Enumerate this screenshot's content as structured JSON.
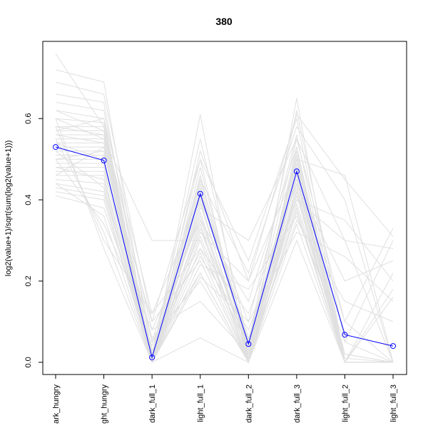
{
  "chart_data": {
    "type": "line",
    "title": "380",
    "xlabel": "",
    "ylabel": "log2(value+1)/sqrt(sum(log2(value+1)))",
    "categories": [
      "dark_hungry",
      "light_hungry",
      "dark_full_1",
      "light_full_1",
      "dark_full_2",
      "dark_full_3",
      "light_full_2",
      "light_full_3"
    ],
    "tick_labels": [
      "ark_hungry",
      "ght_hungry",
      "dark_full_1",
      "light_full_1",
      "dark_full_2",
      "dark_full_3",
      "light_full_2",
      "light_full_3"
    ],
    "y_ticks": [
      "0.0",
      "0.2",
      "0.4",
      "0.6"
    ],
    "ylim": [
      -0.03,
      0.79
    ],
    "grid": false,
    "series": [
      {
        "highlight": true,
        "color": "#0000ff",
        "marker": "open-circle",
        "values": [
          0.53,
          0.497,
          0.012,
          0.415,
          0.045,
          0.47,
          0.068,
          0.04
        ]
      }
    ],
    "background_series": {
      "color": "#e0e0e0",
      "values": [
        [
          0.76,
          0.58,
          0.0,
          0.61,
          0.0,
          0.65,
          0.0,
          0.0
        ],
        [
          0.72,
          0.69,
          0.02,
          0.55,
          0.05,
          0.62,
          0.05,
          0.0
        ],
        [
          0.69,
          0.66,
          0.1,
          0.5,
          0.25,
          0.6,
          0.0,
          0.0
        ],
        [
          0.66,
          0.64,
          0.0,
          0.52,
          0.2,
          0.61,
          0.45,
          0.31
        ],
        [
          0.64,
          0.62,
          0.05,
          0.45,
          0.22,
          0.58,
          0.4,
          0.0
        ],
        [
          0.62,
          0.6,
          0.12,
          0.4,
          0.1,
          0.56,
          0.0,
          0.16
        ],
        [
          0.6,
          0.59,
          0.0,
          0.38,
          0.3,
          0.55,
          0.3,
          0.28
        ],
        [
          0.58,
          0.58,
          0.08,
          0.35,
          0.15,
          0.53,
          0.0,
          0.0
        ],
        [
          0.57,
          0.57,
          0.0,
          0.33,
          0.05,
          0.5,
          0.46,
          0.0
        ],
        [
          0.56,
          0.56,
          0.02,
          0.32,
          0.2,
          0.48,
          0.1,
          0.33
        ],
        [
          0.55,
          0.55,
          0.3,
          0.3,
          0.0,
          0.46,
          0.0,
          0.0
        ],
        [
          0.54,
          0.54,
          0.0,
          0.28,
          0.12,
          0.44,
          0.2,
          0.25
        ],
        [
          0.53,
          0.53,
          0.05,
          0.27,
          0.0,
          0.42,
          0.0,
          0.0
        ],
        [
          0.52,
          0.52,
          0.0,
          0.26,
          0.08,
          0.4,
          0.35,
          0.2
        ],
        [
          0.51,
          0.51,
          0.1,
          0.25,
          0.0,
          0.38,
          0.0,
          0.0
        ],
        [
          0.5,
          0.5,
          0.0,
          0.24,
          0.18,
          0.36,
          0.05,
          0.3
        ],
        [
          0.49,
          0.49,
          0.03,
          0.22,
          0.0,
          0.34,
          0.0,
          0.0
        ],
        [
          0.48,
          0.48,
          0.0,
          0.21,
          0.1,
          0.32,
          0.26,
          0.15
        ],
        [
          0.47,
          0.47,
          0.06,
          0.2,
          0.0,
          0.3,
          0.0,
          0.0
        ],
        [
          0.46,
          0.46,
          0.0,
          0.45,
          0.05,
          0.55,
          0.1,
          0.0
        ],
        [
          0.45,
          0.44,
          0.0,
          0.48,
          0.02,
          0.5,
          0.0,
          0.0
        ],
        [
          0.44,
          0.42,
          0.02,
          0.5,
          0.0,
          0.52,
          0.0,
          0.18
        ],
        [
          0.43,
          0.41,
          0.0,
          0.42,
          0.06,
          0.45,
          0.0,
          0.0
        ],
        [
          0.42,
          0.4,
          0.0,
          0.4,
          0.0,
          0.49,
          0.02,
          0.0
        ],
        [
          0.41,
          0.38,
          0.04,
          0.36,
          0.03,
          0.47,
          0.0,
          0.0
        ],
        [
          0.44,
          0.36,
          0.0,
          0.06,
          0.0,
          0.42,
          0.0,
          0.0
        ],
        [
          0.5,
          0.34,
          0.08,
          0.15,
          0.02,
          0.35,
          0.15,
          0.1
        ],
        [
          0.55,
          0.32,
          0.0,
          0.22,
          0.0,
          0.38,
          0.0,
          0.0
        ],
        [
          0.58,
          0.3,
          0.12,
          0.28,
          0.04,
          0.4,
          0.3,
          0.0
        ],
        [
          0.6,
          0.28,
          0.0,
          0.33,
          0.0,
          0.43,
          0.0,
          0.22
        ],
        [
          0.48,
          0.45,
          0.01,
          0.44,
          0.03,
          0.51,
          0.0,
          0.0
        ],
        [
          0.52,
          0.43,
          0.0,
          0.46,
          0.01,
          0.53,
          0.0,
          0.0
        ],
        [
          0.54,
          0.5,
          0.0,
          0.43,
          0.02,
          0.5,
          0.0,
          0.0
        ],
        [
          0.5,
          0.52,
          0.01,
          0.41,
          0.04,
          0.48,
          0.0,
          0.0
        ],
        [
          0.46,
          0.53,
          0.0,
          0.39,
          0.02,
          0.46,
          0.0,
          0.0
        ],
        [
          0.56,
          0.54,
          0.02,
          0.37,
          0.01,
          0.44,
          0.01,
          0.0
        ],
        [
          0.58,
          0.56,
          0.0,
          0.35,
          0.03,
          0.42,
          0.0,
          0.0
        ],
        [
          0.62,
          0.57,
          0.01,
          0.34,
          0.0,
          0.41,
          0.0,
          0.0
        ],
        [
          0.6,
          0.55,
          0.0,
          0.31,
          0.02,
          0.39,
          0.02,
          0.0
        ],
        [
          0.57,
          0.6,
          0.0,
          0.3,
          0.0,
          0.37,
          0.0,
          0.0
        ]
      ]
    }
  }
}
